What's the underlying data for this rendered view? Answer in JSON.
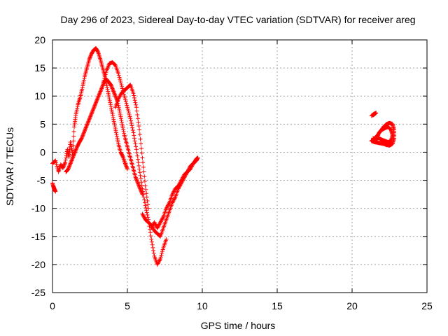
{
  "chart_data": {
    "type": "scatter",
    "title": "Day 296 of 2023, Sidereal Day-to-day VTEC variation (SDTVAR) for receiver areg",
    "xlabel": "GPS time / hours",
    "ylabel": "SDTVAR / TECUs",
    "xlim": [
      0,
      25
    ],
    "ylim": [
      -25,
      20
    ],
    "xticks": [
      "0",
      "5",
      "10",
      "15",
      "20",
      "25"
    ],
    "yticks": [
      "-25",
      "-20",
      "-15",
      "-10",
      "-5",
      "0",
      "5",
      "10",
      "15",
      "20"
    ],
    "grid": true,
    "marker": "+",
    "color": "#ff0000",
    "series": [
      {
        "name": "arc-a",
        "x": [
          0.0,
          0.2,
          0.4,
          0.55,
          0.7,
          0.85,
          1.0,
          1.1,
          1.2,
          1.35,
          1.45,
          1.55,
          1.7,
          1.85,
          2.0,
          2.15,
          2.3,
          2.45,
          2.6,
          2.75,
          2.9,
          3.05,
          3.2,
          3.35,
          3.5,
          3.65,
          3.8,
          3.95,
          4.1,
          4.25,
          4.4,
          4.55,
          4.7,
          4.85,
          5.0
        ],
        "y": [
          -2.0,
          -1.5,
          -3.5,
          -2.2,
          -2.8,
          -1.8,
          0.5,
          -0.8,
          1.8,
          -0.5,
          4.5,
          6.5,
          8.5,
          9.8,
          11.5,
          13.5,
          15.0,
          16.5,
          17.5,
          18.2,
          18.5,
          17.8,
          16.5,
          15.0,
          13.5,
          11.5,
          9.5,
          7.5,
          5.5,
          3.5,
          1.5,
          0.0,
          -0.8,
          -2.0,
          -3.0
        ]
      },
      {
        "name": "arc-b",
        "x": [
          0.9,
          1.05,
          1.2,
          1.35,
          1.5,
          1.65,
          1.8,
          1.95,
          2.1,
          2.25,
          2.4,
          2.55,
          2.7,
          2.85,
          3.0,
          3.15,
          3.3,
          3.45,
          3.6,
          3.75,
          3.9,
          4.05,
          4.2,
          4.35,
          4.5,
          4.65,
          4.8,
          4.95,
          5.1,
          5.25,
          5.4,
          5.55,
          5.7,
          5.85,
          6.0
        ],
        "y": [
          -3.5,
          -3.0,
          -2.0,
          -1.0,
          0.0,
          1.0,
          1.8,
          2.5,
          3.5,
          4.5,
          5.5,
          6.5,
          7.5,
          8.5,
          9.5,
          10.5,
          11.5,
          12.5,
          13.0,
          12.5,
          12.0,
          11.0,
          10.0,
          9.0,
          7.0,
          5.0,
          3.0,
          1.5,
          0.0,
          -1.5,
          -3.0,
          -4.5,
          -5.5,
          -6.5,
          -7.5
        ]
      },
      {
        "name": "arc-c",
        "x": [
          3.4,
          3.6,
          3.8,
          4.0,
          4.2,
          4.4,
          4.6,
          4.8,
          5.0,
          5.2,
          5.4,
          5.6,
          5.8,
          6.0,
          6.2,
          6.4,
          6.6,
          6.8,
          7.0,
          7.2,
          7.4,
          7.6
        ],
        "y": [
          12.5,
          14.5,
          15.8,
          16.0,
          15.5,
          14.0,
          12.0,
          10.0,
          8.0,
          6.0,
          3.5,
          0.5,
          -3.0,
          -6.5,
          -9.5,
          -12.0,
          -15.5,
          -18.5,
          -20.0,
          -19.0,
          -17.0,
          -15.5
        ]
      },
      {
        "name": "arc-d",
        "x": [
          4.2,
          4.4,
          4.6,
          4.8,
          5.0,
          5.2,
          5.4,
          5.6,
          5.8,
          6.0,
          6.2,
          6.4
        ],
        "y": [
          8.0,
          9.5,
          10.5,
          11.0,
          11.5,
          12.0,
          10.5,
          8.0,
          4.0,
          -1.0,
          -6.0,
          -10.0
        ]
      },
      {
        "name": "arc-e",
        "x": [
          6.0,
          6.2,
          6.4,
          6.6,
          6.8,
          7.0,
          7.2,
          7.4,
          7.6,
          7.8,
          8.0,
          8.2,
          8.4,
          8.6,
          8.8,
          9.0,
          9.2,
          9.4,
          9.6,
          9.7
        ],
        "y": [
          -11.0,
          -12.0,
          -12.5,
          -13.0,
          -14.0,
          -14.5,
          -15.0,
          -13.5,
          -12.0,
          -10.5,
          -9.0,
          -8.0,
          -6.5,
          -5.5,
          -4.5,
          -3.5,
          -2.5,
          -2.0,
          -1.2,
          -1.0
        ]
      },
      {
        "name": "arc-f",
        "x": [
          6.6,
          6.8,
          7.0,
          7.2,
          7.4,
          7.6,
          7.8,
          8.0,
          8.2,
          8.4,
          8.6,
          8.8,
          9.0,
          9.2,
          9.4,
          9.6,
          9.7
        ],
        "y": [
          -13.5,
          -12.5,
          -13.5,
          -12.5,
          -11.5,
          -10.0,
          -9.0,
          -7.5,
          -6.5,
          -6.0,
          -5.0,
          -4.0,
          -3.5,
          -3.0,
          -2.0,
          -1.5,
          -1.0
        ]
      },
      {
        "name": "arc-g",
        "x": [
          0.0,
          0.1,
          0.2,
          0.05,
          0.15
        ],
        "y": [
          -5.5,
          -6.5,
          -7.0,
          -6.0,
          -6.8
        ]
      },
      {
        "name": "arc-h",
        "x": [
          21.3,
          21.45,
          21.6,
          21.4,
          21.55
        ],
        "y": [
          6.5,
          6.8,
          7.0,
          6.6,
          6.9
        ]
      },
      {
        "name": "arc-i",
        "x": [
          21.3,
          21.5,
          21.7,
          21.9,
          22.1,
          22.3,
          22.5,
          22.7,
          22.8,
          22.8,
          22.7,
          22.5,
          22.3,
          22.1,
          21.9,
          21.7,
          21.5,
          21.3
        ],
        "y": [
          2.0,
          2.5,
          3.0,
          3.8,
          4.5,
          5.0,
          5.2,
          5.0,
          4.0,
          2.5,
          1.5,
          1.2,
          1.3,
          1.5,
          1.6,
          1.7,
          1.8,
          2.0
        ]
      },
      {
        "name": "arc-j",
        "x": [
          21.4,
          21.6,
          21.8,
          22.0,
          22.2,
          22.4,
          22.6,
          22.7,
          22.6,
          22.4,
          22.2,
          22.0,
          21.8,
          21.6
        ],
        "y": [
          2.5,
          2.0,
          3.5,
          4.0,
          4.3,
          4.5,
          4.0,
          3.0,
          2.0,
          1.8,
          2.0,
          2.2,
          2.5,
          2.5
        ]
      }
    ]
  }
}
